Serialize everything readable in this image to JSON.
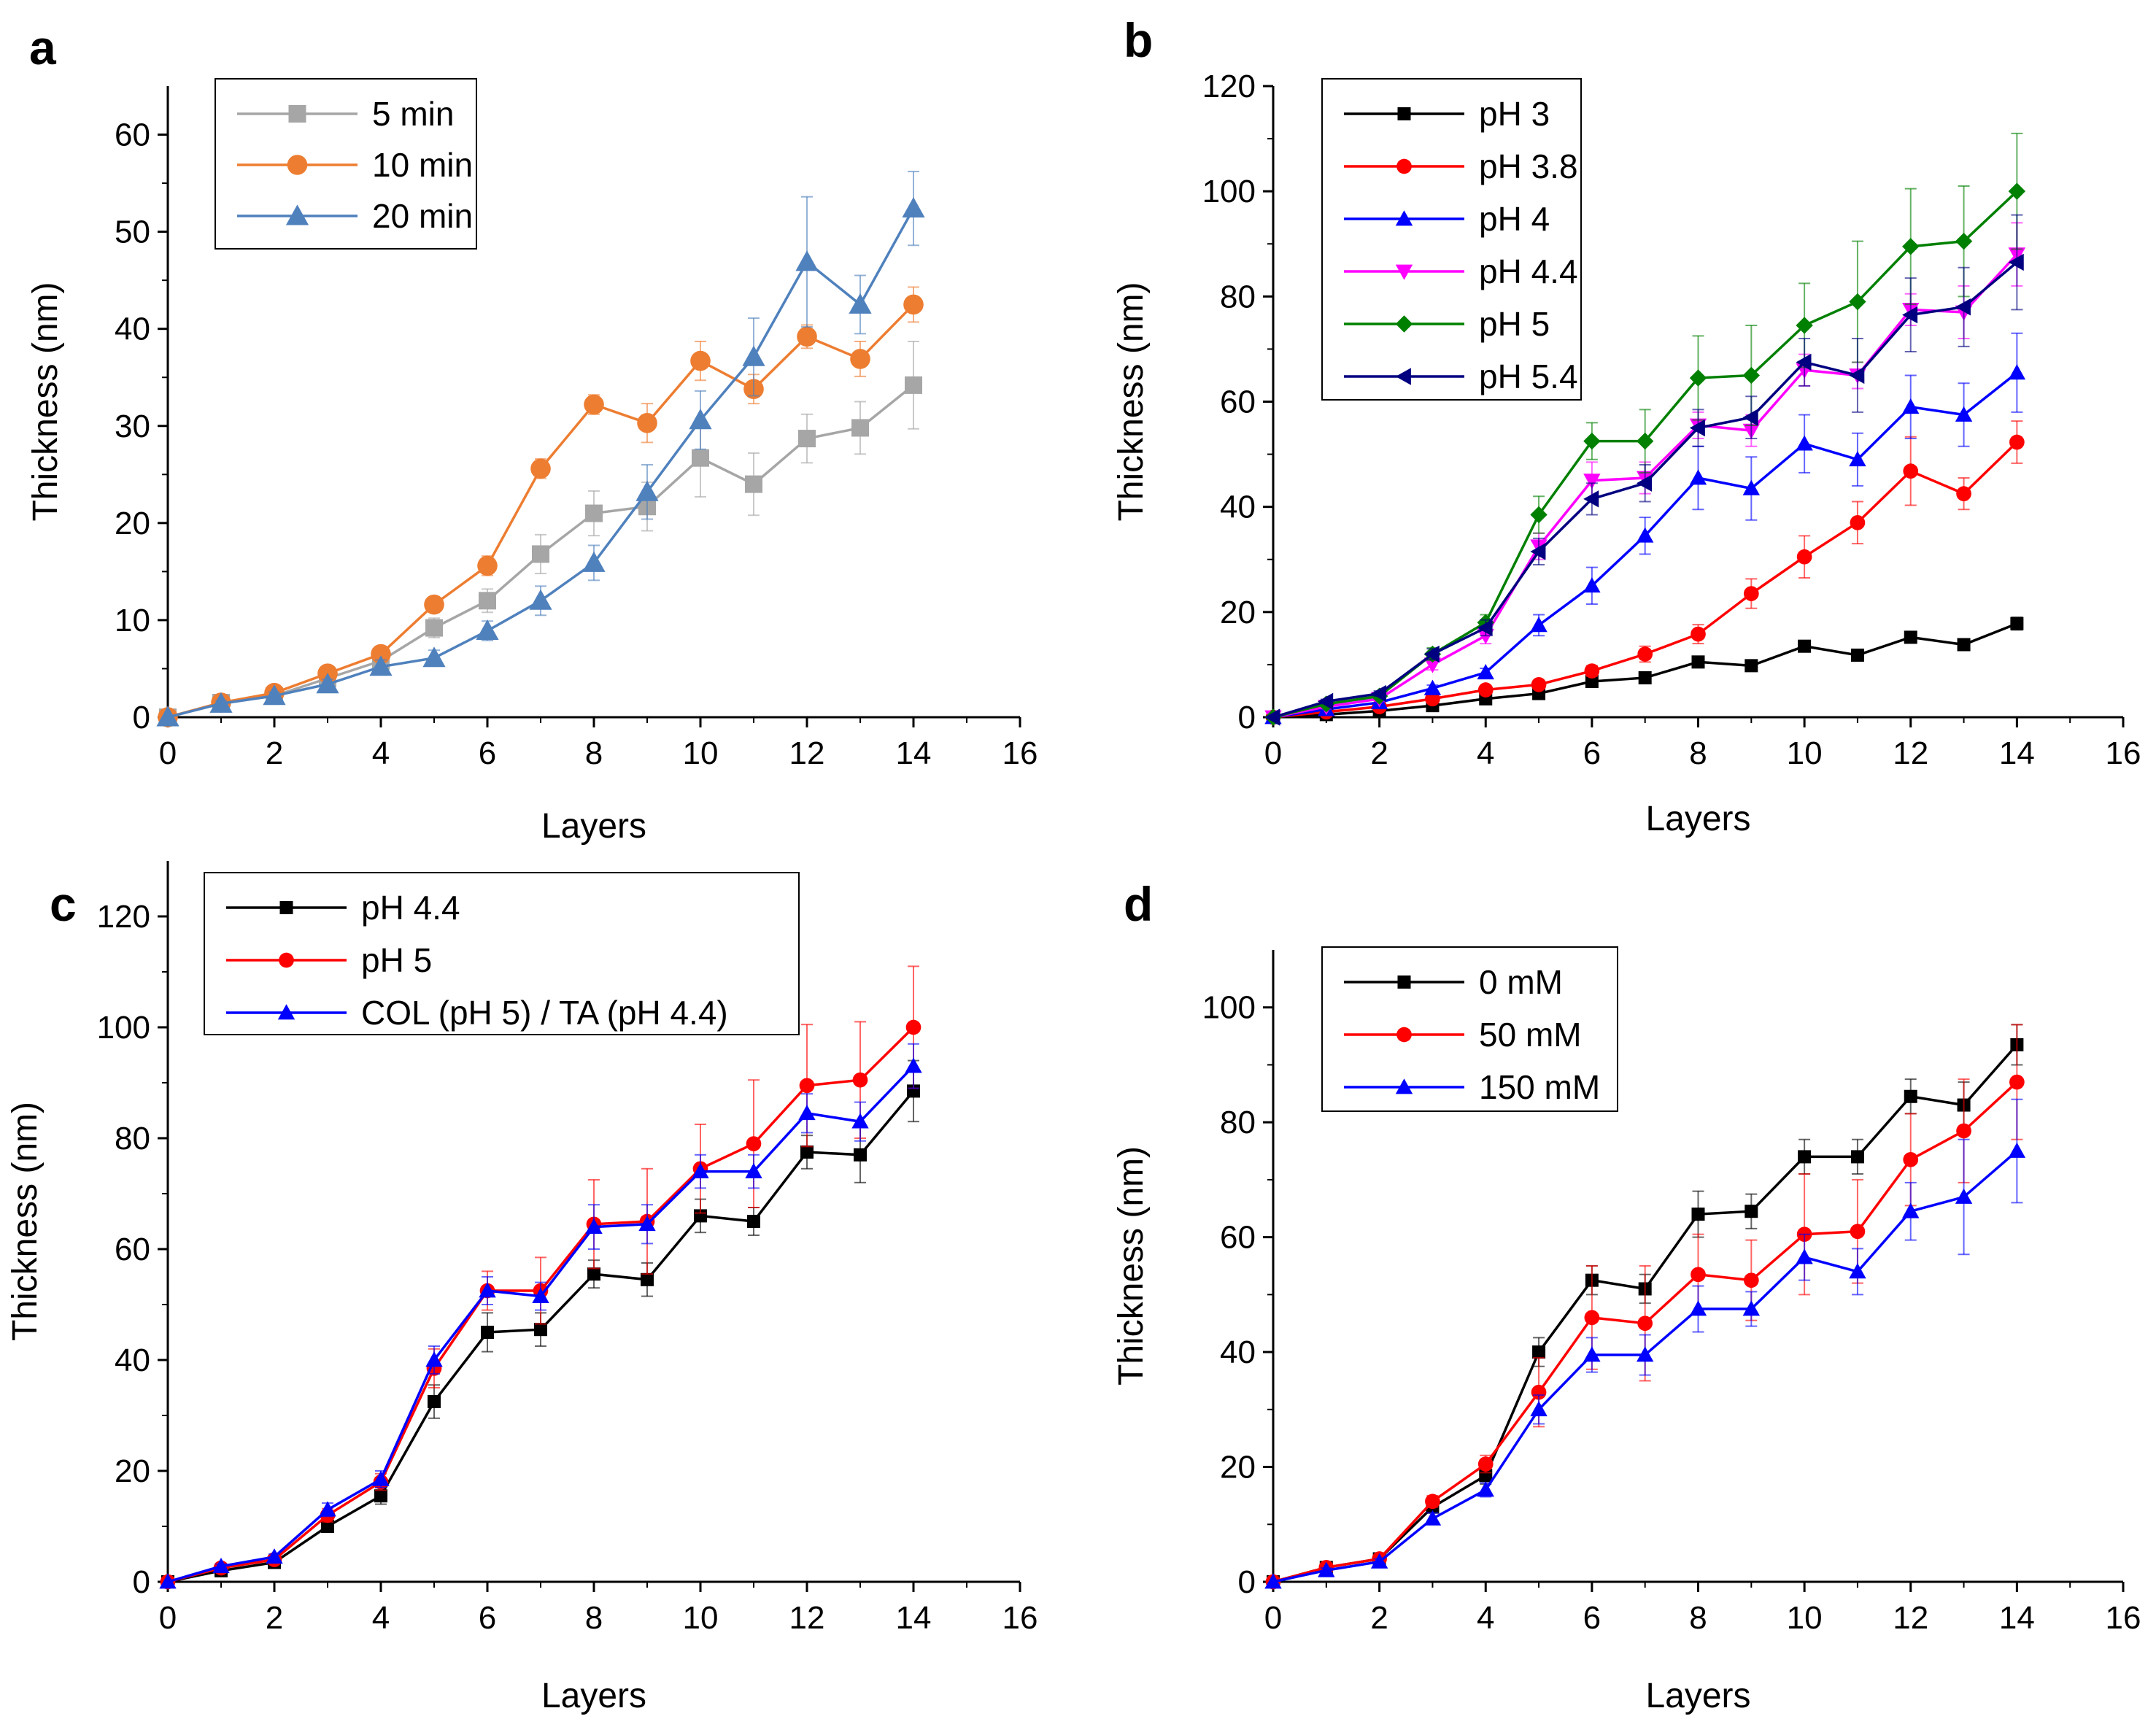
{
  "chart_data": [
    {
      "panel": "a",
      "type": "line",
      "xlabel": "Layers",
      "ylabel": "Thickness (nm)",
      "xlim": [
        0,
        16
      ],
      "ylim": [
        0,
        65
      ],
      "xticks": [
        0,
        2,
        4,
        6,
        8,
        10,
        12,
        14,
        16
      ],
      "yticks": [
        0,
        10,
        20,
        30,
        40,
        50,
        60
      ],
      "legend_position": "top-left",
      "x": [
        0,
        1,
        2,
        3,
        4,
        5,
        6,
        7,
        8,
        9,
        10,
        11,
        12,
        13,
        14
      ],
      "series": [
        {
          "name": "5 min",
          "color": "#a6a6a6",
          "marker": "square",
          "values": [
            0,
            1.5,
            2.2,
            4.0,
            5.8,
            9.2,
            12.0,
            16.8,
            21.0,
            21.7,
            26.7,
            24.0,
            28.7,
            29.8,
            34.2
          ],
          "errors": [
            0,
            0.3,
            0.4,
            0.5,
            0.8,
            1.0,
            1.2,
            2.0,
            2.3,
            2.5,
            4.0,
            3.2,
            2.5,
            2.7,
            4.5
          ]
        },
        {
          "name": "10 min",
          "color": "#ed7d31",
          "marker": "circle",
          "values": [
            0,
            1.5,
            2.5,
            4.5,
            6.5,
            11.6,
            15.6,
            25.6,
            32.2,
            30.3,
            36.7,
            33.8,
            39.2,
            36.9,
            42.5
          ],
          "errors": [
            0,
            0.3,
            0.4,
            0.5,
            0.7,
            0.8,
            1.0,
            1.0,
            1.0,
            2.0,
            2.0,
            1.5,
            1.2,
            1.8,
            1.8
          ]
        },
        {
          "name": "20 min",
          "color": "#4f81bd",
          "marker": "triangle",
          "values": [
            0,
            1.4,
            2.2,
            3.4,
            5.2,
            6.1,
            8.9,
            12.0,
            15.9,
            23.2,
            30.6,
            37.1,
            46.9,
            42.5,
            52.4
          ],
          "errors": [
            0,
            0.3,
            0.4,
            0.5,
            0.7,
            0.8,
            1.0,
            1.5,
            1.8,
            2.8,
            3.0,
            4.0,
            6.7,
            3.0,
            3.8
          ]
        }
      ]
    },
    {
      "panel": "b",
      "type": "line",
      "xlabel": "Layers",
      "ylabel": "Thickness (nm)",
      "xlim": [
        0,
        16
      ],
      "ylim": [
        0,
        120
      ],
      "xticks": [
        0,
        2,
        4,
        6,
        8,
        10,
        12,
        14,
        16
      ],
      "yticks": [
        0,
        20,
        40,
        60,
        80,
        100,
        120
      ],
      "legend_position": "top-left",
      "x": [
        0,
        1,
        2,
        3,
        4,
        5,
        6,
        7,
        8,
        9,
        10,
        11,
        12,
        13,
        14
      ],
      "series": [
        {
          "name": "pH 3",
          "color": "#000000",
          "marker": "square",
          "values": [
            0,
            0.5,
            1.2,
            2.2,
            3.5,
            4.5,
            6.8,
            7.5,
            10.5,
            9.8,
            13.5,
            11.8,
            15.2,
            13.8,
            17.8
          ],
          "errors": [
            0,
            0.2,
            0.3,
            0.4,
            0.5,
            0.6,
            0.7,
            0.8,
            0.9,
            0.9,
            1.0,
            1.0,
            1.0,
            1.0,
            1.2
          ]
        },
        {
          "name": "pH 3.8",
          "color": "#ff0000",
          "marker": "circle",
          "values": [
            0,
            1.0,
            2.0,
            3.5,
            5.2,
            6.2,
            8.8,
            12.0,
            15.8,
            23.5,
            30.5,
            37.0,
            46.8,
            42.5,
            52.3
          ],
          "errors": [
            0,
            0.3,
            0.4,
            0.5,
            0.6,
            0.8,
            1.0,
            1.5,
            1.8,
            2.8,
            4.0,
            4.0,
            6.5,
            3.0,
            4.0
          ]
        },
        {
          "name": "pH 4",
          "color": "#0000ff",
          "marker": "triangle",
          "values": [
            0,
            1.5,
            2.8,
            5.5,
            8.5,
            17.5,
            25.0,
            34.5,
            45.5,
            43.5,
            52.0,
            49.0,
            59.0,
            57.5,
            65.5
          ],
          "errors": [
            0,
            0.3,
            0.4,
            0.6,
            0.8,
            2.0,
            3.5,
            3.5,
            6.0,
            6.0,
            5.5,
            5.0,
            6.0,
            6.0,
            7.5
          ]
        },
        {
          "name": "pH 4.4",
          "color": "#ff00ff",
          "marker": "triangle-down",
          "values": [
            0,
            2.0,
            3.5,
            10.0,
            15.5,
            32.5,
            45.0,
            45.5,
            55.5,
            54.5,
            66.0,
            65.0,
            77.5,
            77.0,
            88.0
          ],
          "errors": [
            0,
            0.4,
            0.5,
            1.0,
            1.5,
            2.5,
            3.5,
            3.0,
            2.5,
            3.0,
            3.0,
            2.5,
            3.0,
            5.0,
            6.0
          ]
        },
        {
          "name": "pH 5",
          "color": "#008000",
          "marker": "diamond",
          "values": [
            0,
            2.5,
            4.0,
            12.0,
            18.0,
            38.5,
            52.5,
            52.5,
            64.5,
            65.0,
            74.5,
            79.0,
            89.5,
            90.5,
            100.0
          ],
          "errors": [
            0,
            0.4,
            0.5,
            1.2,
            1.5,
            3.5,
            3.5,
            6.0,
            8.0,
            9.5,
            8.0,
            11.5,
            11.0,
            10.5,
            11.0
          ]
        },
        {
          "name": "pH 5.4",
          "color": "#000080",
          "marker": "triangle-left",
          "values": [
            0,
            3.0,
            4.5,
            12.0,
            17.0,
            31.5,
            41.5,
            44.5,
            55.0,
            57.0,
            67.5,
            65.0,
            76.5,
            78.0,
            86.5
          ],
          "errors": [
            0,
            0.4,
            0.5,
            1.0,
            1.5,
            2.5,
            3.0,
            3.5,
            3.5,
            4.0,
            4.5,
            7.0,
            7.0,
            7.5,
            9.0
          ]
        }
      ]
    },
    {
      "panel": "c",
      "type": "line",
      "xlabel": "Layers",
      "ylabel": "Thickness (nm)",
      "xlim": [
        0,
        16
      ],
      "ylim": [
        0,
        130
      ],
      "xticks": [
        0,
        2,
        4,
        6,
        8,
        10,
        12,
        14,
        16
      ],
      "yticks": [
        0,
        20,
        40,
        60,
        80,
        100,
        120
      ],
      "legend_position": "top-left",
      "x": [
        0,
        1,
        2,
        3,
        4,
        5,
        6,
        7,
        8,
        9,
        10,
        11,
        12,
        13,
        14
      ],
      "series": [
        {
          "name": "pH 4.4",
          "color": "#000000",
          "marker": "square",
          "values": [
            0,
            2.0,
            3.5,
            10.0,
            15.5,
            32.5,
            45.0,
            45.5,
            55.5,
            54.5,
            66.0,
            65.0,
            77.5,
            77.0,
            88.5
          ],
          "errors": [
            0,
            0.4,
            0.5,
            1.0,
            1.5,
            3.0,
            3.5,
            3.0,
            2.5,
            3.0,
            3.0,
            2.5,
            3.0,
            5.0,
            5.5
          ]
        },
        {
          "name": "pH 5",
          "color": "#ff0000",
          "marker": "circle",
          "values": [
            0,
            2.5,
            4.0,
            12.0,
            18.0,
            38.5,
            52.5,
            52.5,
            64.5,
            65.0,
            74.5,
            79.0,
            89.5,
            90.5,
            100.0
          ],
          "errors": [
            0,
            0.4,
            0.5,
            1.2,
            1.5,
            3.5,
            3.5,
            6.0,
            8.0,
            9.5,
            8.0,
            11.5,
            11.0,
            10.5,
            11.0
          ]
        },
        {
          "name": "COL (pH 5) / TA (pH 4.4)",
          "color": "#0000ff",
          "marker": "triangle",
          "values": [
            0,
            2.8,
            4.5,
            13.0,
            18.5,
            40.0,
            52.5,
            51.5,
            64.0,
            64.5,
            74.0,
            74.0,
            84.5,
            83.0,
            93.0
          ],
          "errors": [
            0,
            0.4,
            0.5,
            1.2,
            1.5,
            2.5,
            2.5,
            2.5,
            4.0,
            3.5,
            3.0,
            3.0,
            3.5,
            3.5,
            4.0
          ]
        }
      ]
    },
    {
      "panel": "d",
      "type": "line",
      "xlabel": "Layers",
      "ylabel": "Thickness (nm)",
      "xlim": [
        0,
        16
      ],
      "ylim": [
        0,
        110
      ],
      "xticks": [
        0,
        2,
        4,
        6,
        8,
        10,
        12,
        14,
        16
      ],
      "yticks": [
        0,
        20,
        40,
        60,
        80,
        100
      ],
      "legend_position": "top-left",
      "x": [
        0,
        1,
        2,
        3,
        4,
        5,
        6,
        7,
        8,
        9,
        10,
        11,
        12,
        13,
        14
      ],
      "series": [
        {
          "name": "0 mM",
          "color": "#000000",
          "marker": "square",
          "values": [
            0,
            2.5,
            4.0,
            13.0,
            18.5,
            40.0,
            52.5,
            51.0,
            64.0,
            64.5,
            74.0,
            74.0,
            84.5,
            83.0,
            93.5
          ],
          "errors": [
            0,
            0.4,
            0.5,
            1.0,
            1.5,
            2.5,
            2.5,
            2.5,
            4.0,
            3.0,
            3.0,
            3.0,
            3.0,
            4.0,
            3.5
          ]
        },
        {
          "name": "50 mM",
          "color": "#ff0000",
          "marker": "circle",
          "values": [
            0,
            2.5,
            4.0,
            14.0,
            20.5,
            33.0,
            46.0,
            45.0,
            53.5,
            52.5,
            60.5,
            61.0,
            73.5,
            78.5,
            87.0
          ],
          "errors": [
            0,
            0.4,
            0.5,
            1.0,
            1.5,
            6.0,
            9.0,
            10.0,
            7.0,
            7.0,
            10.5,
            9.0,
            8.0,
            9.0,
            10.0
          ]
        },
        {
          "name": "150 mM",
          "color": "#0000ff",
          "marker": "triangle",
          "values": [
            0,
            2.0,
            3.5,
            11.0,
            16.0,
            30.0,
            39.5,
            39.5,
            47.5,
            47.5,
            56.5,
            54.0,
            64.5,
            67.0,
            75.0
          ],
          "errors": [
            0,
            0.4,
            0.5,
            1.0,
            1.2,
            2.5,
            3.0,
            3.5,
            4.0,
            3.0,
            4.0,
            4.0,
            5.0,
            10.0,
            9.0
          ]
        }
      ]
    }
  ]
}
